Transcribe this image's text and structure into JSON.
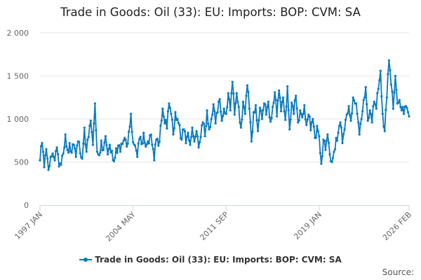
{
  "chart_data": {
    "type": "line",
    "title": "Trade in Goods: Oil (33): EU: Imports: BOP: CVM: SA",
    "xlabel": "",
    "ylabel": "",
    "ylim": [
      0,
      2000
    ],
    "yticks": [
      0,
      500,
      1000,
      1500,
      2000
    ],
    "ytick_labels": [
      "0",
      "500",
      "1 000",
      "1 500",
      "2 000"
    ],
    "x_start": "1997 JAN",
    "x_end": "2026 FEB",
    "xticks": [
      {
        "index": 0,
        "label": "1997 JAN"
      },
      {
        "index": 88,
        "label": "2004 MAY"
      },
      {
        "index": 176,
        "label": "2011 SEP"
      },
      {
        "index": 264,
        "label": "2019 JAN"
      },
      {
        "index": 349,
        "label": "2026 FEB"
      }
    ],
    "legend_position": "bottom",
    "series": [
      {
        "name": "Trade in Goods: Oil (33): EU: Imports: BOP: CVM: SA",
        "color": "#0a7bbf",
        "anchors": [
          [
            0,
            520
          ],
          [
            2,
            720
          ],
          [
            4,
            440
          ],
          [
            6,
            650
          ],
          [
            8,
            410
          ],
          [
            10,
            560
          ],
          [
            12,
            600
          ],
          [
            14,
            520
          ],
          [
            16,
            670
          ],
          [
            18,
            450
          ],
          [
            20,
            470
          ],
          [
            22,
            600
          ],
          [
            24,
            820
          ],
          [
            26,
            640
          ],
          [
            28,
            720
          ],
          [
            30,
            610
          ],
          [
            32,
            700
          ],
          [
            34,
            560
          ],
          [
            36,
            740
          ],
          [
            38,
            600
          ],
          [
            40,
            540
          ],
          [
            42,
            900
          ],
          [
            44,
            620
          ],
          [
            46,
            790
          ],
          [
            48,
            980
          ],
          [
            50,
            700
          ],
          [
            52,
            1180
          ],
          [
            54,
            620
          ],
          [
            56,
            580
          ],
          [
            58,
            750
          ],
          [
            60,
            640
          ],
          [
            62,
            800
          ],
          [
            64,
            590
          ],
          [
            66,
            700
          ],
          [
            68,
            630
          ],
          [
            70,
            510
          ],
          [
            72,
            660
          ],
          [
            74,
            690
          ],
          [
            76,
            620
          ],
          [
            78,
            710
          ],
          [
            80,
            780
          ],
          [
            82,
            680
          ],
          [
            84,
            850
          ],
          [
            86,
            1060
          ],
          [
            88,
            730
          ],
          [
            90,
            690
          ],
          [
            92,
            560
          ],
          [
            94,
            770
          ],
          [
            96,
            710
          ],
          [
            98,
            840
          ],
          [
            100,
            680
          ],
          [
            102,
            740
          ],
          [
            104,
            810
          ],
          [
            106,
            700
          ],
          [
            108,
            520
          ],
          [
            110,
            760
          ],
          [
            112,
            690
          ],
          [
            114,
            920
          ],
          [
            116,
            1120
          ],
          [
            118,
            950
          ],
          [
            120,
            890
          ],
          [
            122,
            1180
          ],
          [
            124,
            1060
          ],
          [
            126,
            820
          ],
          [
            128,
            1080
          ],
          [
            130,
            1000
          ],
          [
            132,
            930
          ],
          [
            134,
            760
          ],
          [
            136,
            880
          ],
          [
            138,
            720
          ],
          [
            140,
            840
          ],
          [
            142,
            700
          ],
          [
            144,
            900
          ],
          [
            146,
            740
          ],
          [
            148,
            860
          ],
          [
            150,
            670
          ],
          [
            152,
            790
          ],
          [
            154,
            960
          ],
          [
            156,
            800
          ],
          [
            158,
            1100
          ],
          [
            160,
            880
          ],
          [
            162,
            1000
          ],
          [
            164,
            1170
          ],
          [
            166,
            950
          ],
          [
            168,
            1080
          ],
          [
            170,
            1230
          ],
          [
            172,
            980
          ],
          [
            174,
            1120
          ],
          [
            176,
            1060
          ],
          [
            178,
            1300
          ],
          [
            180,
            1100
          ],
          [
            182,
            1430
          ],
          [
            184,
            1050
          ],
          [
            186,
            1300
          ],
          [
            188,
            1140
          ],
          [
            190,
            900
          ],
          [
            192,
            1200
          ],
          [
            194,
            1060
          ],
          [
            196,
            1390
          ],
          [
            198,
            1120
          ],
          [
            200,
            740
          ],
          [
            202,
            1080
          ],
          [
            204,
            1160
          ],
          [
            206,
            860
          ],
          [
            208,
            1130
          ],
          [
            210,
            1000
          ],
          [
            212,
            1180
          ],
          [
            214,
            1050
          ],
          [
            216,
            1200
          ],
          [
            218,
            970
          ],
          [
            220,
            1140
          ],
          [
            222,
            1310
          ],
          [
            224,
            1030
          ],
          [
            226,
            1330
          ],
          [
            228,
            1090
          ],
          [
            230,
            1250
          ],
          [
            232,
            990
          ],
          [
            234,
            1380
          ],
          [
            236,
            880
          ],
          [
            238,
            1190
          ],
          [
            240,
            1060
          ],
          [
            242,
            1270
          ],
          [
            244,
            960
          ],
          [
            246,
            1100
          ],
          [
            248,
            1020
          ],
          [
            250,
            1160
          ],
          [
            252,
            930
          ],
          [
            254,
            1050
          ],
          [
            256,
            870
          ],
          [
            258,
            1000
          ],
          [
            260,
            780
          ],
          [
            262,
            920
          ],
          [
            264,
            800
          ],
          [
            266,
            480
          ],
          [
            268,
            760
          ],
          [
            270,
            640
          ],
          [
            272,
            820
          ],
          [
            274,
            590
          ],
          [
            276,
            500
          ],
          [
            278,
            620
          ],
          [
            280,
            780
          ],
          [
            282,
            840
          ],
          [
            284,
            960
          ],
          [
            286,
            720
          ],
          [
            288,
            880
          ],
          [
            290,
            1050
          ],
          [
            292,
            1150
          ],
          [
            294,
            980
          ],
          [
            296,
            1250
          ],
          [
            298,
            1180
          ],
          [
            300,
            1060
          ],
          [
            302,
            820
          ],
          [
            304,
            1000
          ],
          [
            306,
            1220
          ],
          [
            308,
            1370
          ],
          [
            310,
            980
          ],
          [
            312,
            1100
          ],
          [
            314,
            960
          ],
          [
            316,
            1200
          ],
          [
            318,
            1120
          ],
          [
            320,
            1350
          ],
          [
            322,
            1560
          ],
          [
            324,
            1060
          ],
          [
            326,
            860
          ],
          [
            328,
            1250
          ],
          [
            330,
            1680
          ],
          [
            332,
            1400
          ],
          [
            334,
            1120
          ],
          [
            336,
            1500
          ],
          [
            338,
            1180
          ],
          [
            340,
            1220
          ],
          [
            342,
            1100
          ],
          [
            344,
            1060
          ],
          [
            346,
            1150
          ],
          [
            348,
            1080
          ],
          [
            349,
            1030
          ]
        ]
      }
    ]
  },
  "legend": {
    "label": "Trade in Goods: Oil (33): EU: Imports: BOP: CVM: SA"
  },
  "credits": {
    "text": "Source:"
  }
}
